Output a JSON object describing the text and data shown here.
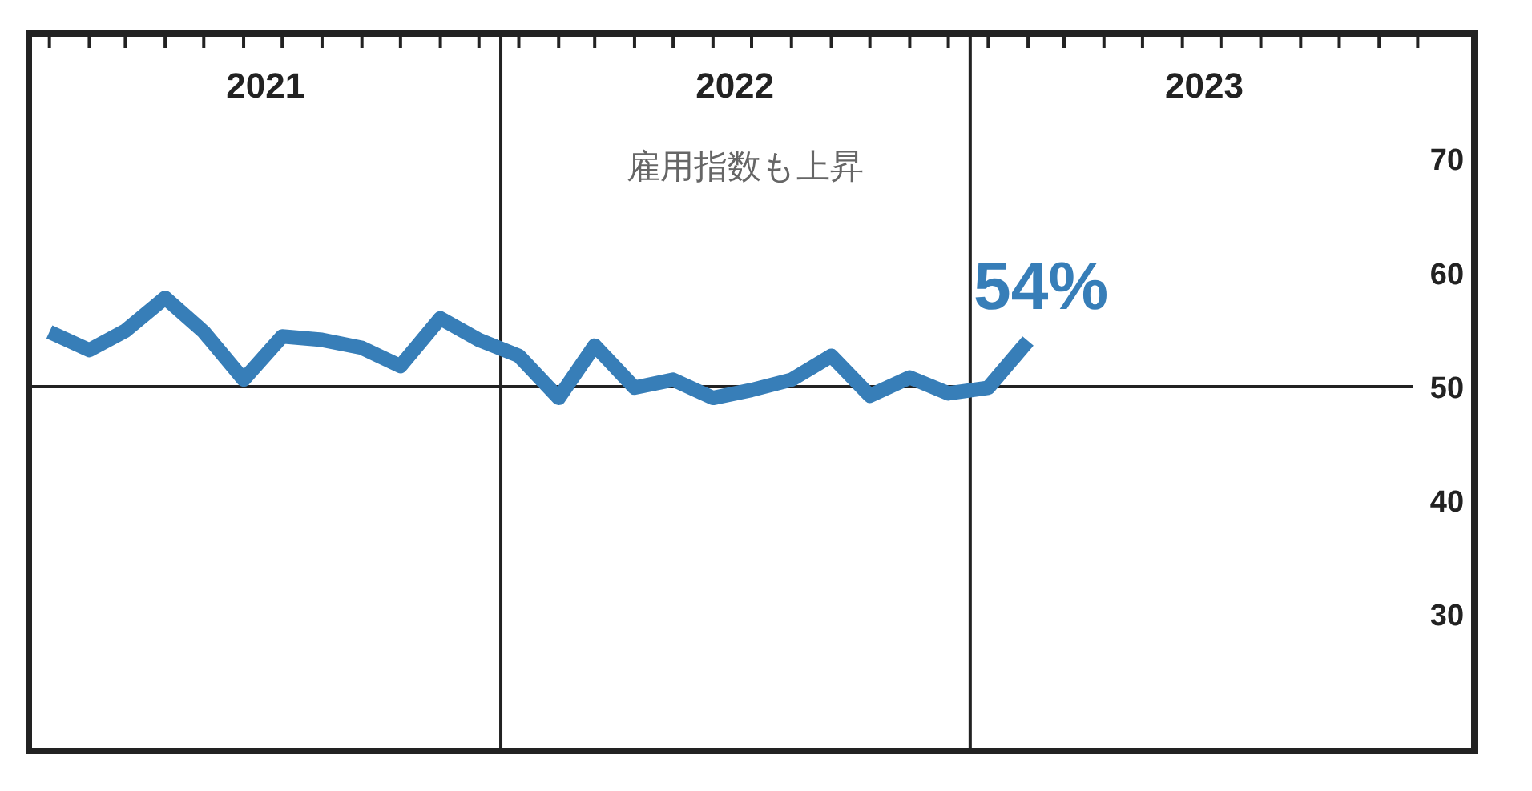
{
  "chart_data": {
    "type": "line",
    "x": [
      "2021-01-15",
      "2021-02-15",
      "2021-03-15",
      "2021-04-15",
      "2021-05-15",
      "2021-06-15",
      "2021-07-15",
      "2021-08-15",
      "2021-09-15",
      "2021-10-15",
      "2021-11-15",
      "2021-12-15",
      "2022-01-15",
      "2022-02-15",
      "2022-03-15",
      "2022-04-15",
      "2022-05-15",
      "2022-06-15",
      "2022-07-15",
      "2022-08-15",
      "2022-09-15",
      "2022-10-15",
      "2022-11-15",
      "2022-12-15",
      "2023-01-15",
      "2023-02-15"
    ],
    "series": [
      {
        "color": "#377eb8",
        "values": [
          54.8,
          53.2,
          54.9,
          57.8,
          54.8,
          50.6,
          54.4,
          54.1,
          53.4,
          51.8,
          56.0,
          54.1,
          52.7,
          49.0,
          53.6,
          49.9,
          50.6,
          49.0,
          49.7,
          50.6,
          52.7,
          49.2,
          50.8,
          49.4,
          49.9,
          54
        ]
      }
    ],
    "xlim": [
      "2020-12-30",
      "2024-01-28"
    ],
    "xticks": [
      {
        "value": "2021-01-15",
        "label": null
      },
      {
        "value": "2021-02-15",
        "label": null
      },
      {
        "value": "2021-03-15",
        "label": null
      },
      {
        "value": "2021-04-15",
        "label": null
      },
      {
        "value": "2021-05-15",
        "label": null
      },
      {
        "value": "2021-06-15",
        "label": null
      },
      {
        "value": "2021-07-15",
        "label": null
      },
      {
        "value": "2021-08-15",
        "label": null
      },
      {
        "value": "2021-09-15",
        "label": null
      },
      {
        "value": "2021-10-15",
        "label": null
      },
      {
        "value": "2021-11-15",
        "label": null
      },
      {
        "value": "2021-12-15",
        "label": null
      },
      {
        "value": "2022-01-15",
        "label": null
      },
      {
        "value": "2022-02-15",
        "label": null
      },
      {
        "value": "2022-03-15",
        "label": null
      },
      {
        "value": "2022-04-15",
        "label": null
      },
      {
        "value": "2022-05-15",
        "label": null
      },
      {
        "value": "2022-06-15",
        "label": null
      },
      {
        "value": "2022-07-15",
        "label": null
      },
      {
        "value": "2022-08-15",
        "label": null
      },
      {
        "value": "2022-09-15",
        "label": null
      },
      {
        "value": "2022-10-15",
        "label": null
      },
      {
        "value": "2022-11-15",
        "label": null
      },
      {
        "value": "2022-12-15",
        "label": null
      },
      {
        "value": "2023-01-15",
        "label": null
      },
      {
        "value": "2023-02-15",
        "label": null
      },
      {
        "value": "2023-03-15",
        "label": null
      },
      {
        "value": "2023-04-15",
        "label": null
      },
      {
        "value": "2023-05-15",
        "label": null
      },
      {
        "value": "2023-06-15",
        "label": null
      },
      {
        "value": "2023-07-15",
        "label": null
      },
      {
        "value": "2023-08-15",
        "label": null
      },
      {
        "value": "2023-09-15",
        "label": null
      },
      {
        "value": "2023-10-15",
        "label": null
      },
      {
        "value": "2023-11-15",
        "label": null
      },
      {
        "value": "2023-12-15",
        "label": null
      },
      {
        "value": "2021-07-02",
        "label": "2021"
      },
      {
        "value": "2022-07-02",
        "label": "2022"
      },
      {
        "value": "2023-07-02",
        "label": "2023"
      }
    ],
    "ylim": [
      18,
      81
    ],
    "yticks": [
      30,
      40,
      50,
      60,
      70
    ],
    "ref_lines": [
      {
        "axis": "x",
        "value": "2022-01-01",
        "label": null,
        "color": "#222222"
      },
      {
        "axis": "x",
        "value": "2023-01-01",
        "label": null,
        "color": "#222222"
      },
      {
        "axis": "y",
        "value": 50,
        "label": null,
        "color": "#222222"
      }
    ],
    "annotations": [
      "雇用指数も上昇",
      {
        "text": "54%",
        "x": "2023-02-15",
        "y": 54
      }
    ],
    "grid": false,
    "marker": "none",
    "line_style": "solid"
  }
}
